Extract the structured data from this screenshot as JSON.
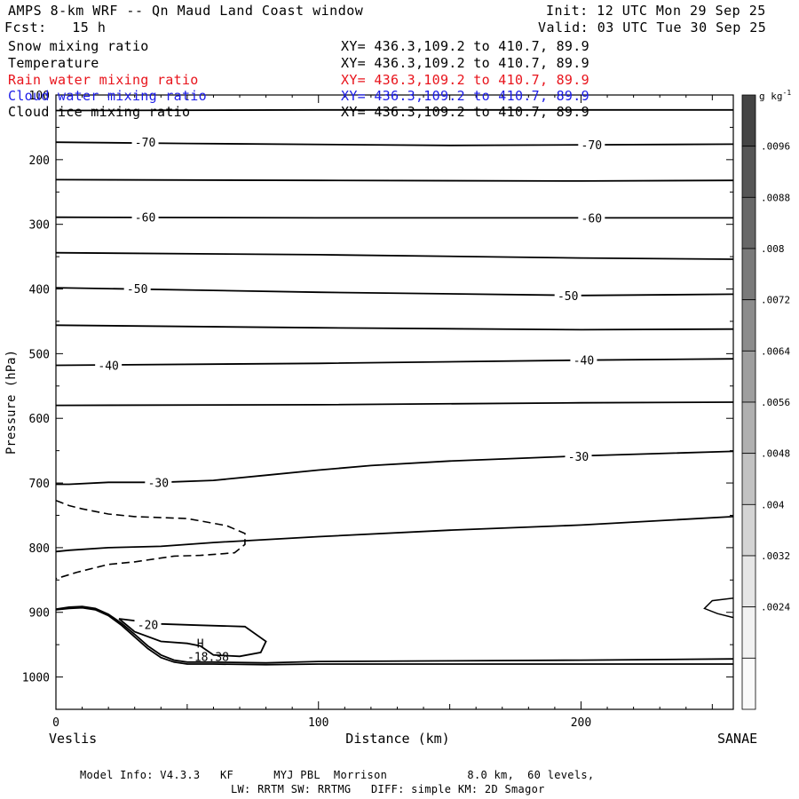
{
  "header": {
    "title": "AMPS 8-km WRF -- Qn Maud Land Coast window",
    "init": "Init: 12 UTC Mon 29 Sep 25",
    "forecast": "Fcst:   15 h",
    "valid": "Valid: 03 UTC Tue 30 Sep 25"
  },
  "fields": [
    {
      "name": "Snow mixing ratio",
      "xy": "XY= 436.3,109.2 to 410.7, 89.9",
      "color": "#000000"
    },
    {
      "name": "Temperature",
      "xy": "XY= 436.3,109.2 to 410.7, 89.9",
      "color": "#000000"
    },
    {
      "name": "Rain water mixing ratio",
      "xy": "XY= 436.3,109.2 to 410.7, 89.9",
      "color": "#e8141c"
    },
    {
      "name": "Cloud water mixing ratio",
      "xy": "XY= 436.3,109.2 to 410.7, 89.9",
      "color": "#1c1ce8"
    },
    {
      "name": "Cloud ice mixing ratio",
      "xy": "XY= 436.3,109.2 to 410.7, 89.9",
      "color": "#000000"
    }
  ],
  "footer": {
    "line1": "Model Info: V4.3.3   KF      MYJ PBL  Morrison            8.0 km,  60 levels,",
    "line2": "LW: RRTM SW: RRTMG   DIFF: simple KM: 2D Smagor"
  },
  "chart_data": {
    "type": "line",
    "ylabel": "Pressure (hPa)",
    "xlabel": "Distance (km)",
    "left_endpoint": "Veslis",
    "right_endpoint": "SANAE",
    "xlim": [
      0,
      258
    ],
    "ylim": [
      100,
      1050
    ],
    "y_scale": "linear-inverted",
    "x_ticks": [
      0,
      100,
      200
    ],
    "y_ticks": [
      100,
      200,
      300,
      400,
      500,
      600,
      700,
      800,
      900,
      1000
    ],
    "colorbar": {
      "unit": "g kg",
      "unit_exp": "-1",
      "labels": [
        ".0096",
        ".0088",
        ".008",
        ".0072",
        ".0064",
        ".0056",
        ".0048",
        ".004",
        ".0032",
        ".0024"
      ],
      "colors": [
        "#444444",
        "#565656",
        "#686868",
        "#7a7a7a",
        "#8c8c8c",
        "#9e9e9e",
        "#b0b0b0",
        "#c2c2c2",
        "#d4d4d4",
        "#e6e6e6",
        "#f2f2f2",
        "#fafafa"
      ]
    },
    "temperature_contours": [
      {
        "x": [
          0,
          100,
          200,
          258
        ],
        "y": [
          124,
          123,
          123,
          123
        ]
      },
      {
        "x": [
          0,
          50,
          150,
          258
        ],
        "y": [
          173,
          175,
          178,
          176
        ]
      },
      {
        "x": [
          0,
          100,
          200,
          258
        ],
        "y": [
          231,
          232,
          233,
          232
        ]
      },
      {
        "x": [
          0,
          100,
          200,
          258
        ],
        "y": [
          289,
          290,
          290,
          290
        ]
      },
      {
        "x": [
          0,
          100,
          200,
          258
        ],
        "y": [
          344,
          347,
          352,
          354
        ]
      },
      {
        "x": [
          0,
          100,
          200,
          258
        ],
        "y": [
          398,
          405,
          410,
          408
        ]
      },
      {
        "x": [
          0,
          100,
          200,
          258
        ],
        "y": [
          456,
          460,
          463,
          462
        ]
      },
      {
        "x": [
          0,
          100,
          200,
          258
        ],
        "y": [
          518,
          515,
          510,
          508
        ]
      },
      {
        "x": [
          0,
          100,
          200,
          258
        ],
        "y": [
          580,
          579,
          576,
          575
        ]
      },
      {
        "x": [
          0,
          5,
          20,
          40,
          60,
          80,
          100,
          120,
          150,
          200,
          258
        ],
        "y": [
          702,
          702,
          699,
          699,
          696,
          688,
          680,
          673,
          666,
          658,
          651
        ]
      },
      {
        "x": [
          0,
          5,
          20,
          40,
          60,
          100,
          150,
          200,
          258
        ],
        "y": [
          806,
          804,
          800,
          798,
          792,
          783,
          773,
          765,
          752
        ]
      },
      {
        "x": [
          0,
          5,
          10,
          15,
          20,
          25,
          30,
          35,
          40,
          45,
          50,
          60,
          80,
          100,
          150,
          200,
          258
        ],
        "y": [
          895,
          892,
          891,
          894,
          903,
          917,
          934,
          952,
          966,
          974,
          977,
          977,
          978,
          976,
          975,
          974,
          972
        ]
      },
      {
        "x": [
          0,
          5,
          10,
          15,
          20,
          25,
          30,
          35,
          40,
          45,
          50,
          60,
          80,
          100,
          150,
          200,
          258
        ],
        "y": [
          896,
          894,
          893,
          896,
          905,
          920,
          938,
          956,
          970,
          977,
          980,
          980,
          981,
          980,
          980,
          980,
          980
        ]
      },
      {
        "x": [
          24,
          40,
          55,
          72,
          80,
          78,
          70,
          60,
          55,
          50,
          40,
          30,
          24
        ],
        "y": [
          910,
          918,
          920,
          922,
          945,
          962,
          968,
          966,
          952,
          948,
          945,
          930,
          910
        ]
      }
    ],
    "temperature_labels": [
      {
        "text": "-70",
        "x": 34,
        "y": 173
      },
      {
        "text": "-70",
        "x": 204,
        "y": 177
      },
      {
        "text": "-60",
        "x": 34,
        "y": 289
      },
      {
        "text": "-60",
        "x": 204,
        "y": 290
      },
      {
        "text": "-50",
        "x": 31,
        "y": 399
      },
      {
        "text": "-50",
        "x": 195,
        "y": 410
      },
      {
        "text": "-40",
        "x": 20,
        "y": 518
      },
      {
        "text": "-40",
        "x": 201,
        "y": 510
      },
      {
        "text": "-30",
        "x": 39,
        "y": 699
      },
      {
        "text": "-30",
        "x": 199,
        "y": 659
      },
      {
        "text": "-20",
        "x": 35,
        "y": 919
      }
    ],
    "snow_dashed_contour": {
      "x": [
        0,
        5,
        10,
        20,
        30,
        50,
        65,
        72,
        72,
        68,
        55,
        45,
        30,
        20,
        8,
        0
      ],
      "y": [
        727,
        735,
        740,
        748,
        752,
        755,
        766,
        778,
        795,
        808,
        812,
        813,
        822,
        826,
        838,
        848
      ]
    },
    "right_edge_contour": {
      "x": [
        258,
        250,
        247,
        252,
        258
      ],
      "y": [
        878,
        882,
        894,
        902,
        908
      ]
    },
    "annotations": [
      {
        "text": "H",
        "x": 55,
        "y": 948
      },
      {
        "text": "-18.38",
        "x": 58,
        "y": 968
      }
    ]
  }
}
